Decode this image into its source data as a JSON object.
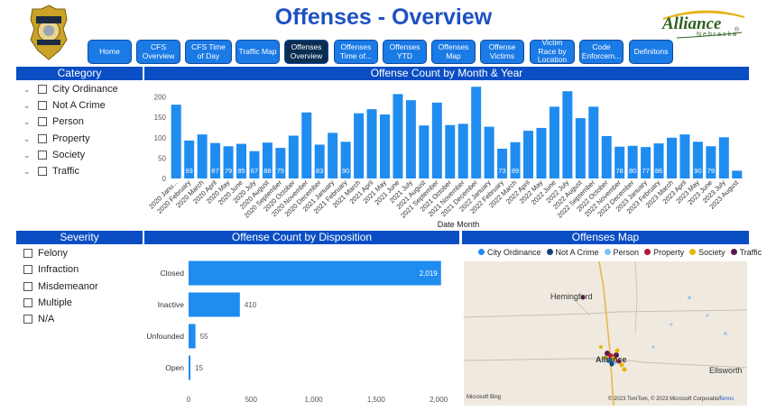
{
  "title": "Offenses - Overview",
  "logo": {
    "word": "Alliance",
    "sub": "Nebraska",
    "reg": "®"
  },
  "nav": [
    {
      "label": "Home",
      "active": false
    },
    {
      "label": "CFS Overview",
      "active": false
    },
    {
      "label": "CFS Time of Day",
      "active": false
    },
    {
      "label": "Traffic Map",
      "active": false
    },
    {
      "label": "Offenses Overview",
      "active": true
    },
    {
      "label": "Offenses Time of...",
      "active": false
    },
    {
      "label": "Offenses YTD",
      "active": false
    },
    {
      "label": "Offenses Map",
      "active": false
    },
    {
      "label": "Offense Victims",
      "active": false
    },
    {
      "label": "Victim Race by Location",
      "active": false
    },
    {
      "label": "Code Enforcem...",
      "active": false
    },
    {
      "label": "Definitons",
      "active": false
    }
  ],
  "category": {
    "header": "Category",
    "items": [
      "City Ordinance",
      "Not A Crime",
      "Person",
      "Property",
      "Society",
      "Traffic"
    ]
  },
  "severity": {
    "header": "Severity",
    "items": [
      "Felony",
      "Infraction",
      "Misdemeanor",
      "Multiple",
      "N/A"
    ]
  },
  "map": {
    "header": "Offenses Map",
    "legend": [
      {
        "label": "City Ordinance",
        "color": "#1f8cf0"
      },
      {
        "label": "Not A Crime",
        "color": "#123e7c"
      },
      {
        "label": "Person",
        "color": "#7ec3f5"
      },
      {
        "label": "Property",
        "color": "#b8163a"
      },
      {
        "label": "Society",
        "color": "#e5b800"
      },
      {
        "label": "Traffic",
        "color": "#5a1a4e"
      }
    ],
    "places": [
      "Hemingford",
      "Alliance",
      "Ellsworth"
    ],
    "bing": "Microsoft Bing",
    "copyright": "© 2023 TomTom, © 2023 Microsoft Corporation",
    "terms": "Terms"
  },
  "chart_data": [
    {
      "type": "bar",
      "title": "Offense Count by Month & Year",
      "xlabel": "Date Month",
      "ylabel": "",
      "ylim": [
        0,
        230
      ],
      "yticks": [
        0,
        50,
        100,
        150,
        200
      ],
      "categories": [
        "2020 Janu...",
        "2020 February",
        "2020 March",
        "2020 April",
        "2020 May",
        "2020 June",
        "2020 July",
        "2020 August",
        "2020 September",
        "2020 October",
        "2020 November",
        "2020 December",
        "2021 January",
        "2021 February",
        "2021 March",
        "2021 April",
        "2021 May",
        "2021 June",
        "2021 July",
        "2021 August",
        "2021 September",
        "2021 October",
        "2021 November",
        "2021 December",
        "2022 January",
        "2022 February",
        "2022 March",
        "2022 April",
        "2022 May",
        "2022 June",
        "2022 July",
        "2022 August",
        "2022 September",
        "2022 October",
        "2022 November",
        "2022 December",
        "2023 January",
        "2023 February",
        "2023 March",
        "2023 April",
        "2023 May",
        "2023 June",
        "2023 July",
        "2023 August"
      ],
      "values": [
        181,
        93,
        108,
        87,
        79,
        85,
        67,
        88,
        75,
        105,
        162,
        83,
        112,
        90,
        160,
        170,
        157,
        207,
        192,
        130,
        186,
        131,
        134,
        225,
        127,
        73,
        89,
        117,
        124,
        176,
        214,
        148,
        176,
        104,
        78,
        80,
        77,
        86,
        100,
        108,
        90,
        79,
        101,
        19
      ],
      "labels": [
        "",
        "93",
        "",
        "87",
        "79",
        "85",
        "67",
        "88",
        "75",
        "",
        "",
        "83",
        "",
        "90",
        "",
        "",
        "",
        "",
        "",
        "",
        "",
        "",
        "",
        "",
        "",
        "73",
        "89",
        "",
        "",
        "",
        "",
        "",
        "",
        "",
        "78",
        "80",
        "77",
        "86",
        "",
        "",
        "90",
        "79",
        "",
        ""
      ]
    },
    {
      "type": "bar",
      "orientation": "horizontal",
      "title": "Offense Count by Disposition",
      "categories": [
        "Closed",
        "Inactive",
        "Unfounded",
        "Open"
      ],
      "values": [
        2019,
        410,
        55,
        15
      ],
      "value_labels": [
        "2,019",
        "410",
        "55",
        "15"
      ],
      "xlim": [
        0,
        2100
      ],
      "xticks": [
        0,
        500,
        1000,
        1500,
        2000
      ],
      "xtick_labels": [
        "0",
        "500",
        "1,000",
        "1,500",
        "2,000"
      ]
    }
  ]
}
